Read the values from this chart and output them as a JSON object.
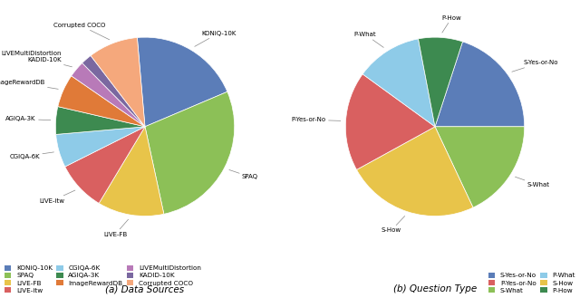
{
  "chart1": {
    "labels": [
      "KONiQ-10K",
      "SPAQ",
      "LIVE-FB",
      "LIVE-itw",
      "CGIQA-6K",
      "AGIQA-3K",
      "ImageRewardDB",
      "LIVEMultiDistortion",
      "KADID-10K",
      "Corrupted COCO"
    ],
    "values": [
      20,
      28,
      12,
      9,
      6,
      5,
      6,
      3,
      2,
      9
    ],
    "colors": [
      "#5b7db8",
      "#8cc057",
      "#e8c44a",
      "#d96060",
      "#8ecbe8",
      "#3d8a50",
      "#e07a38",
      "#b87ab8",
      "#7a68a0",
      "#f5a87c"
    ],
    "startangle": 95
  },
  "chart2": {
    "labels": [
      "S-Yes-or-No",
      "S-What",
      "S-How",
      "P-Yes-or-No",
      "P-What",
      "P-How"
    ],
    "values": [
      20,
      18,
      24,
      18,
      12,
      8
    ],
    "colors": [
      "#5b7db8",
      "#8cc057",
      "#e8c44a",
      "#d96060",
      "#8ecbe8",
      "#3d8a50"
    ],
    "startangle": 72
  },
  "legend1": {
    "labels": [
      "KONiQ-10K",
      "SPAQ",
      "LIVE-FB",
      "LIVE-itw",
      "CGIQA-6K",
      "AGIQA-3K",
      "ImageRewardDB",
      "LIVEMultiDistortion",
      "KADID-10K",
      "Corrupted COCO"
    ],
    "colors": [
      "#5b7db8",
      "#8cc057",
      "#e8c44a",
      "#d96060",
      "#8ecbe8",
      "#3d8a50",
      "#e07a38",
      "#b87ab8",
      "#7a68a0",
      "#f5a87c"
    ]
  },
  "legend2": {
    "labels": [
      "S-Yes-or-No",
      "P-Yes-or-No",
      "S-What",
      "P-What",
      "S-How",
      "P-How"
    ],
    "colors": [
      "#5b7db8",
      "#d96060",
      "#8cc057",
      "#8ecbe8",
      "#e8c44a",
      "#3d8a50"
    ]
  },
  "title1": "(a) Data Sources",
  "title2": "(b) Question Type"
}
